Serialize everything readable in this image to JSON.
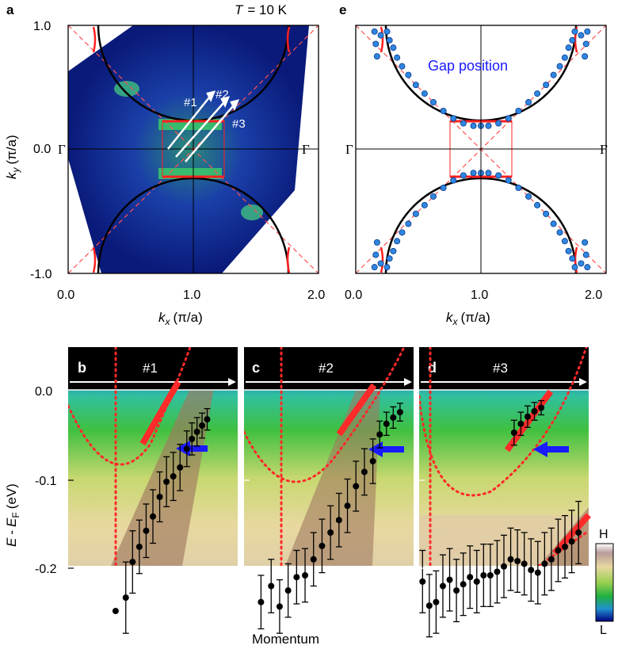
{
  "panel_labels": {
    "a": "a",
    "b": "b",
    "c": "c",
    "d": "d",
    "e": "e"
  },
  "temperature": {
    "symbol": "T",
    "value": "= 10 K"
  },
  "map_axes": {
    "x_label": "k",
    "x_sub": "x",
    "x_unit": "(π/a)",
    "y_label": "k",
    "y_sub": "y",
    "y_unit": "(π/a)",
    "x_ticks": [
      "0.0",
      "1.0",
      "2.0"
    ],
    "y_ticks": [
      "1.0",
      "0.0",
      "-1.0"
    ],
    "gamma": "Γ"
  },
  "cut_labels": [
    "#1",
    "#2",
    "#3"
  ],
  "gap_position_label": "Gap position",
  "colorbar": {
    "high": "H",
    "low": "L"
  },
  "spectra_axes": {
    "y_label_E": "E",
    "y_label_EF": "E",
    "y_label_sub": "F",
    "y_unit": "(eV)",
    "y_ticks": [
      "0.0",
      "-0.1",
      "-0.2"
    ],
    "x_label": "Momentum"
  },
  "colors": {
    "fermi_surface": "#000000",
    "band_red": "#ff2a2a",
    "gap_points": "#2f86e0",
    "arrow_blue": "#1a1aff",
    "gap_label": "#1a1aff"
  },
  "chart_data": [
    {
      "panel": "a",
      "type": "heatmap",
      "title": "T = 10 K",
      "xlabel": "kx (π/a)",
      "ylabel": "ky (π/a)",
      "xlim": [
        0.0,
        2.0
      ],
      "ylim": [
        -1.0,
        1.0
      ],
      "cuts": [
        "#1",
        "#2",
        "#3"
      ]
    },
    {
      "panel": "e",
      "type": "scatter",
      "title": "Gap position",
      "xlabel": "kx (π/a)",
      "ylabel": "ky (π/a)",
      "xlim": [
        0.0,
        2.0
      ],
      "ylim": [
        -1.0,
        1.0
      ],
      "gap_points_upper": [
        [
          0.25,
          0.95
        ],
        [
          0.27,
          0.88
        ],
        [
          0.3,
          0.82
        ],
        [
          0.33,
          0.74
        ],
        [
          0.37,
          0.67
        ],
        [
          0.42,
          0.6
        ],
        [
          0.48,
          0.52
        ],
        [
          0.55,
          0.45
        ],
        [
          0.62,
          0.38
        ],
        [
          0.7,
          0.31
        ],
        [
          0.78,
          0.25
        ],
        [
          0.86,
          0.21
        ],
        [
          0.94,
          0.19
        ],
        [
          1.0,
          0.19
        ],
        [
          1.06,
          0.19
        ],
        [
          1.14,
          0.21
        ],
        [
          1.22,
          0.25
        ],
        [
          1.3,
          0.31
        ],
        [
          1.38,
          0.38
        ],
        [
          1.45,
          0.45
        ],
        [
          1.52,
          0.52
        ],
        [
          1.58,
          0.6
        ],
        [
          1.63,
          0.67
        ],
        [
          1.67,
          0.74
        ],
        [
          1.7,
          0.82
        ],
        [
          1.73,
          0.88
        ],
        [
          1.75,
          0.95
        ]
      ],
      "gap_points_edge": [
        [
          0.15,
          0.95
        ],
        [
          0.16,
          0.85
        ],
        [
          0.17,
          0.75
        ],
        [
          0.2,
          0.92
        ],
        [
          1.8,
          0.92
        ],
        [
          1.83,
          0.75
        ],
        [
          1.84,
          0.85
        ],
        [
          1.85,
          0.95
        ]
      ]
    },
    {
      "panel": "b",
      "type": "scatter",
      "title": "#1",
      "xlabel": "Momentum",
      "ylabel": "E - EF (eV)",
      "ylim": [
        -0.25,
        0.05
      ],
      "points": [
        [
          0.28,
          -0.248,
          0.0
        ],
        [
          0.34,
          -0.233,
          0.04
        ],
        [
          0.38,
          -0.193,
          0.035
        ],
        [
          0.42,
          -0.176,
          0.03
        ],
        [
          0.46,
          -0.158,
          0.03
        ],
        [
          0.5,
          -0.142,
          0.03
        ],
        [
          0.54,
          -0.12,
          0.028
        ],
        [
          0.58,
          -0.103,
          0.028
        ],
        [
          0.62,
          -0.097,
          0.027
        ],
        [
          0.66,
          -0.087,
          0.026
        ],
        [
          0.7,
          -0.066,
          0.02
        ],
        [
          0.73,
          -0.055,
          0.018
        ],
        [
          0.76,
          -0.047,
          0.016
        ],
        [
          0.79,
          -0.04,
          0.014
        ],
        [
          0.82,
          -0.033,
          0.012
        ]
      ]
    },
    {
      "panel": "c",
      "type": "scatter",
      "title": "#2",
      "xlabel": "Momentum",
      "ylabel": "E - EF (eV)",
      "ylim": [
        -0.25,
        0.05
      ],
      "points": [
        [
          0.1,
          -0.238,
          0.03
        ],
        [
          0.16,
          -0.22,
          0.03
        ],
        [
          0.21,
          -0.243,
          0.03
        ],
        [
          0.26,
          -0.225,
          0.03
        ],
        [
          0.31,
          -0.21,
          0.03
        ],
        [
          0.36,
          -0.208,
          0.03
        ],
        [
          0.41,
          -0.19,
          0.03
        ],
        [
          0.46,
          -0.175,
          0.03
        ],
        [
          0.51,
          -0.16,
          0.03
        ],
        [
          0.56,
          -0.146,
          0.03
        ],
        [
          0.61,
          -0.13,
          0.03
        ],
        [
          0.66,
          -0.108,
          0.028
        ],
        [
          0.71,
          -0.092,
          0.026
        ],
        [
          0.76,
          -0.08,
          0.025
        ],
        [
          0.8,
          -0.05,
          0.015
        ],
        [
          0.84,
          -0.038,
          0.013
        ],
        [
          0.88,
          -0.031,
          0.012
        ],
        [
          0.92,
          -0.025,
          0.01
        ]
      ]
    },
    {
      "panel": "d",
      "type": "scatter",
      "title": "#3",
      "xlabel": "Momentum",
      "ylabel": "E - EF (eV)",
      "ylim": [
        -0.25,
        0.05
      ],
      "points": [
        [
          0.02,
          -0.215,
          0.035
        ],
        [
          0.06,
          -0.242,
          0.035
        ],
        [
          0.1,
          -0.238,
          0.035
        ],
        [
          0.14,
          -0.22,
          0.035
        ],
        [
          0.18,
          -0.213,
          0.035
        ],
        [
          0.22,
          -0.225,
          0.035
        ],
        [
          0.26,
          -0.218,
          0.035
        ],
        [
          0.3,
          -0.21,
          0.035
        ],
        [
          0.34,
          -0.215,
          0.035
        ],
        [
          0.38,
          -0.208,
          0.035
        ],
        [
          0.42,
          -0.208,
          0.035
        ],
        [
          0.46,
          -0.204,
          0.035
        ],
        [
          0.5,
          -0.198,
          0.035
        ],
        [
          0.54,
          -0.19,
          0.035
        ],
        [
          0.58,
          -0.192,
          0.035
        ],
        [
          0.62,
          -0.195,
          0.035
        ],
        [
          0.66,
          -0.202,
          0.035
        ],
        [
          0.7,
          -0.205,
          0.035
        ],
        [
          0.74,
          -0.195,
          0.035
        ],
        [
          0.78,
          -0.19,
          0.035
        ],
        [
          0.82,
          -0.18,
          0.035
        ],
        [
          0.86,
          -0.176,
          0.035
        ],
        [
          0.9,
          -0.17,
          0.035
        ],
        [
          0.94,
          -0.16,
          0.035
        ],
        [
          0.56,
          -0.048,
          0.014
        ],
        [
          0.6,
          -0.038,
          0.013
        ],
        [
          0.64,
          -0.03,
          0.012
        ],
        [
          0.68,
          -0.024,
          0.01
        ],
        [
          0.72,
          -0.02,
          0.008
        ]
      ]
    }
  ]
}
